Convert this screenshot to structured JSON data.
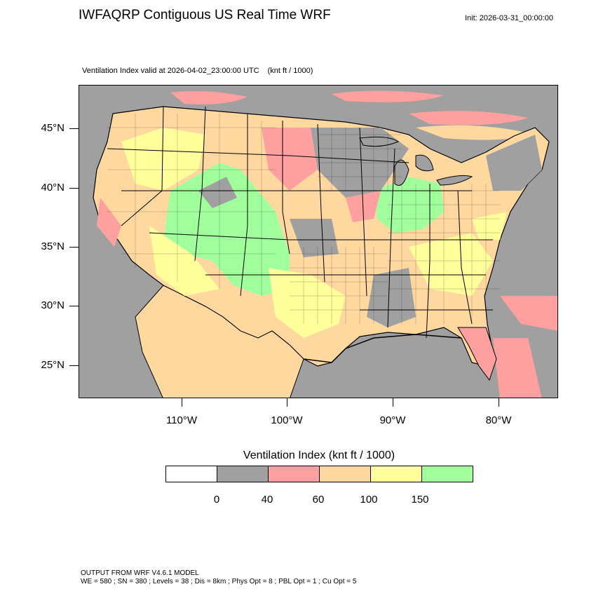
{
  "header": {
    "title": "IWFAQRP Contiguous US Real Time WRF",
    "init": "Init: 2026-03-31_00:00:00"
  },
  "map": {
    "field_label": "Ventilation Index valid at 2026-04-02_23:00:00 UTC",
    "field_units": "(knt ft / 1000)",
    "lat_labels": [
      "45°N",
      "40°N",
      "35°N",
      "30°N",
      "25°N"
    ],
    "lon_labels": [
      "110°W",
      "100°W",
      "90°W",
      "80°W"
    ]
  },
  "legend": {
    "title": "Ventilation Index  (knt ft / 1000)",
    "tick_labels": [
      "0",
      "40",
      "60",
      "100",
      "150"
    ],
    "colors": [
      "#ffffff",
      "#a0a0a0",
      "#ffa0a0",
      "#ffd8a0",
      "#ffff9c",
      "#a0ff9c"
    ]
  },
  "footer": {
    "line1": "OUTPUT FROM WRF V4.6.1 MODEL",
    "line2": "WE = 580 ; SN = 380 ; Levels = 38 ; Dis = 8km ; Phys Opt = 8 ; PBL Opt = 1 ; Cu Opt = 5"
  }
}
